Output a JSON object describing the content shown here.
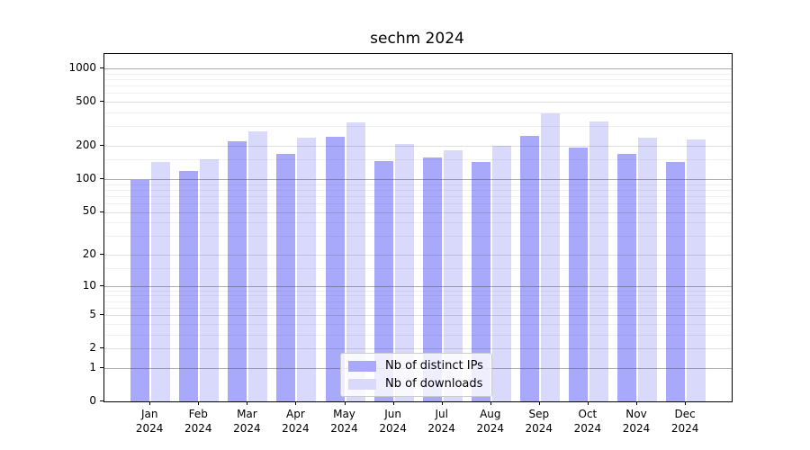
{
  "title": "sechm 2024",
  "chart_data": {
    "type": "bar",
    "title": "sechm 2024",
    "scale": "log1p",
    "grid": "on",
    "legend_position": "lower center",
    "categories": [
      "Jan 2024",
      "Feb 2024",
      "Mar 2024",
      "Apr 2024",
      "May 2024",
      "Jun 2024",
      "Jul 2024",
      "Aug 2024",
      "Sep 2024",
      "Oct 2024",
      "Nov 2024",
      "Dec 2024"
    ],
    "series": [
      {
        "name": "Nb of distinct IPs",
        "color": "#a9a9fb",
        "values": [
          97,
          118,
          221,
          170,
          241,
          146,
          156,
          144,
          248,
          192,
          170,
          142
        ]
      },
      {
        "name": "Nb of downloads",
        "color": "#d9d9fb",
        "values": [
          143,
          152,
          270,
          238,
          326,
          208,
          182,
          199,
          392,
          330,
          237,
          229
        ]
      }
    ],
    "y_ticks": [
      0,
      1,
      2,
      5,
      10,
      20,
      50,
      100,
      200,
      500,
      1000
    ],
    "ylim": [
      0,
      1350
    ]
  },
  "colors": {
    "bar_distinct_ips": "#a9a9fb",
    "bar_downloads": "#d9d9fb",
    "grid_major": "#9d9d9d",
    "grid_light": "#e2e2e2",
    "axis": "#000000"
  }
}
